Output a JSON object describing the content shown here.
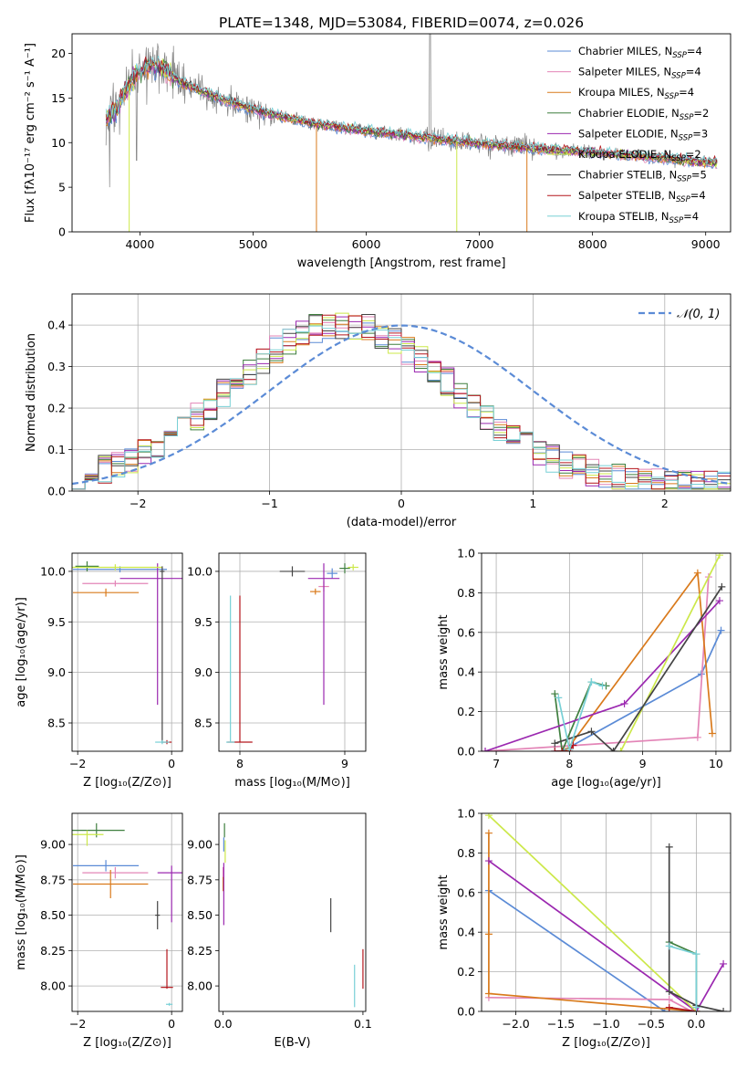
{
  "title": "PLATE=1348, MJD=53084, FIBERID=0074, z=0.026",
  "models": [
    {
      "name": "Chabrier MILES",
      "nssp": "4",
      "color": "#5b8bd6"
    },
    {
      "name": "Salpeter MILES",
      "nssp": "4",
      "color": "#e385b7"
    },
    {
      "name": "Kroupa MILES",
      "nssp": "4",
      "color": "#d97a1c"
    },
    {
      "name": "Chabrier ELODIE",
      "nssp": "2",
      "color": "#3f7f3f"
    },
    {
      "name": "Salpeter ELODIE",
      "nssp": "3",
      "color": "#9b28b0"
    },
    {
      "name": "Kroupa ELODIE",
      "nssp": "2",
      "color": "#cce84a"
    },
    {
      "name": "Chabrier STELIB",
      "nssp": "5",
      "color": "#444444"
    },
    {
      "name": "Salpeter STELIB",
      "nssp": "4",
      "color": "#b4161c"
    },
    {
      "name": "Kroupa STELIB",
      "nssp": "4",
      "color": "#78d0d6"
    }
  ],
  "chart_data": [
    {
      "id": "spectrum",
      "type": "line",
      "xlabel": "wavelength [Angstrom, rest frame]",
      "ylabel": "Flux [fλ10⁻¹⁷ erg cm⁻² s⁻¹ A⁻¹]",
      "xlim": [
        3400,
        9220
      ],
      "ylim": [
        0,
        22.2
      ],
      "xticks": [
        4000,
        5000,
        6000,
        7000,
        8000,
        9000
      ],
      "yticks": [
        0,
        5,
        10,
        15,
        20
      ],
      "grid": false,
      "legend": "top-right",
      "data_color": "#808080",
      "continuum": [
        [
          3700,
          12.8
        ],
        [
          3800,
          14.0
        ],
        [
          3900,
          16.5
        ],
        [
          4000,
          18.0
        ],
        [
          4100,
          18.8
        ],
        [
          4200,
          18.3
        ],
        [
          4300,
          17.2
        ],
        [
          4500,
          16.0
        ],
        [
          4700,
          15.0
        ],
        [
          5000,
          13.7
        ],
        [
          5500,
          12.2
        ],
        [
          6000,
          11.3
        ],
        [
          6500,
          10.6
        ],
        [
          7000,
          9.9
        ],
        [
          7500,
          9.3
        ],
        [
          8000,
          8.9
        ],
        [
          8500,
          8.4
        ],
        [
          9000,
          7.8
        ],
        [
          9100,
          7.7
        ]
      ]
    },
    {
      "id": "residuals",
      "type": "step",
      "xlabel": "(data-model)/error",
      "ylabel": "Normed distribution",
      "xlim": [
        -2.5,
        2.5
      ],
      "ylim": [
        0,
        0.475
      ],
      "xticks": [
        -2,
        -1,
        0,
        1,
        2
      ],
      "yticks": [
        0.0,
        0.1,
        0.2,
        0.3,
        0.4
      ],
      "grid": true,
      "legend": "top-right",
      "normal_label": "𝒩(0, 1)",
      "normal_color": "#5b8bd6",
      "bin_width": 0.1
    },
    {
      "id": "age-vs-Z",
      "type": "errorbar",
      "xlabel": "Z [log₁₀(Z/Z⊙)]",
      "ylabel": "age  [log₁₀(age/yr)]",
      "xlim": [
        -2.12,
        0.23
      ],
      "ylim": [
        8.22,
        10.18
      ],
      "xticks": [
        -2,
        0
      ],
      "yticks": [
        8.5,
        9.0,
        9.5,
        10.0
      ],
      "grid": true,
      "points": [
        {
          "x": -1.1,
          "xerr": [
            1.0,
            1.0
          ],
          "y": 10.02,
          "yerr": [
            0.03,
            0.03
          ]
        },
        {
          "x": -1.2,
          "xerr": [
            0.7,
            0.7
          ],
          "y": 9.88,
          "yerr": [
            0.03,
            0.03
          ]
        },
        {
          "x": -1.4,
          "xerr": [
            0.7,
            0.7
          ],
          "y": 9.79,
          "yerr": [
            0.04,
            0.04
          ]
        },
        {
          "x": -1.8,
          "xerr": [
            0.25,
            0.25
          ],
          "y": 10.05,
          "yerr": [
            0.05,
            0.05
          ]
        },
        {
          "x": -0.3,
          "xerr": [
            0.8,
            0.8
          ],
          "y": 9.93,
          "yerr": [
            1.25,
            0.15
          ]
        },
        {
          "x": -1.2,
          "xerr": [
            1.0,
            1.0
          ],
          "y": 10.04,
          "yerr": [
            0.03,
            0.03
          ]
        },
        {
          "x": -0.2,
          "xerr": [
            0.05,
            0.05
          ],
          "y": 10.0,
          "yerr": [
            1.7,
            0.05
          ]
        },
        {
          "x": -0.1,
          "xerr": [
            0.1,
            0.1
          ],
          "y": 8.31,
          "yerr": [
            0.02,
            0.02
          ]
        },
        {
          "x": -0.2,
          "xerr": [
            0.15,
            0.15
          ],
          "y": 8.31,
          "yerr": [
            0.02,
            0.02
          ]
        }
      ]
    },
    {
      "id": "age-vs-mass",
      "type": "errorbar",
      "xlabel": "mass [log₁₀(M/M⊙)]",
      "ylabel": "",
      "xlim": [
        7.8,
        9.2
      ],
      "ylim": [
        8.22,
        10.18
      ],
      "xticks": [
        8,
        9
      ],
      "yticks": [
        8.5,
        9.0,
        9.5,
        10.0
      ],
      "grid": true,
      "points": [
        {
          "x": 8.88,
          "xerr": [
            0.05,
            0.05
          ],
          "y": 9.98,
          "yerr": [
            0.05,
            0.05
          ]
        },
        {
          "x": 8.8,
          "xerr": [
            0.05,
            0.05
          ],
          "y": 9.85,
          "yerr": [
            0.05,
            0.05
          ]
        },
        {
          "x": 8.72,
          "xerr": [
            0.05,
            0.05
          ],
          "y": 9.8,
          "yerr": [
            0.03,
            0.03
          ]
        },
        {
          "x": 9.0,
          "xerr": [
            0.05,
            0.05
          ],
          "y": 10.03,
          "yerr": [
            0.05,
            0.05
          ]
        },
        {
          "x": 8.8,
          "xerr": [
            0.15,
            0.15
          ],
          "y": 9.93,
          "yerr": [
            1.25,
            0.15
          ]
        },
        {
          "x": 9.08,
          "xerr": [
            0.05,
            0.05
          ],
          "y": 10.04,
          "yerr": [
            0.03,
            0.03
          ]
        },
        {
          "x": 8.5,
          "xerr": [
            0.12,
            0.12
          ],
          "y": 10.0,
          "yerr": [
            0.05,
            0.05
          ]
        },
        {
          "x": 8.0,
          "xerr": [
            0.12,
            0.12
          ],
          "y": 8.31,
          "yerr": [
            0,
            1.45
          ]
        },
        {
          "x": 7.91,
          "xerr": [
            0.04,
            0.04
          ],
          "y": 8.31,
          "yerr": [
            0,
            1.45
          ]
        }
      ]
    },
    {
      "id": "weight-vs-age",
      "type": "line",
      "xlabel": "age  [log₁₀(age/yr)]",
      "ylabel": "mass weight",
      "xlim": [
        6.8,
        10.2
      ],
      "ylim": [
        0,
        1.0
      ],
      "xticks": [
        7,
        8,
        9,
        10
      ],
      "yticks": [
        0.0,
        0.2,
        0.4,
        0.6,
        0.8,
        1.0
      ],
      "grid": true,
      "series": [
        {
          "x": [
            7.8,
            7.9,
            9.8,
            10.07
          ],
          "y": [
            0.0,
            0.0,
            0.39,
            0.61
          ]
        },
        {
          "x": [
            6.85,
            9.75,
            9.9
          ],
          "y": [
            0.0,
            0.07,
            0.88
          ]
        },
        {
          "x": [
            7.95,
            9.75,
            9.95
          ],
          "y": [
            0.0,
            0.9,
            0.09
          ]
        },
        {
          "x": [
            7.8,
            7.9,
            8.3,
            8.5
          ],
          "y": [
            0.29,
            0.0,
            0.35,
            0.33
          ]
        },
        {
          "x": [
            6.85,
            8.75,
            10.05
          ],
          "y": [
            0.0,
            0.24,
            0.76
          ]
        },
        {
          "x": [
            8.7,
            10.05
          ],
          "y": [
            0.0,
            0.99
          ]
        },
        {
          "x": [
            7.8,
            8.3,
            8.6,
            10.08
          ],
          "y": [
            0.04,
            0.1,
            0.0,
            0.83
          ]
        },
        {
          "x": [
            7.8,
            7.9,
            8.0,
            8.05
          ],
          "y": [
            0.0,
            0.0,
            0.0,
            0.03
          ]
        },
        {
          "x": [
            7.85,
            8.0,
            8.3,
            8.45
          ],
          "y": [
            0.27,
            0.01,
            0.35,
            0.33
          ]
        }
      ]
    },
    {
      "id": "mass-vs-Z",
      "type": "errorbar",
      "xlabel": "Z [log₁₀(Z/Z⊙)]",
      "ylabel": "mass [log₁₀(M/M⊙)]",
      "xlim": [
        -2.12,
        0.23
      ],
      "ylim": [
        7.82,
        9.22
      ],
      "xticks": [
        -2,
        0
      ],
      "yticks": [
        8.0,
        8.25,
        8.5,
        8.75,
        9.0
      ],
      "grid": true,
      "points": [
        {
          "x": -1.4,
          "xerr": [
            0.7,
            0.7
          ],
          "y": 8.85,
          "yerr": [
            0.04,
            0.04
          ]
        },
        {
          "x": -1.2,
          "xerr": [
            0.7,
            0.7
          ],
          "y": 8.8,
          "yerr": [
            0.04,
            0.04
          ]
        },
        {
          "x": -1.3,
          "xerr": [
            0.8,
            0.8
          ],
          "y": 8.72,
          "yerr": [
            0.1,
            0.1
          ]
        },
        {
          "x": -1.6,
          "xerr": [
            0.6,
            0.6
          ],
          "y": 9.1,
          "yerr": [
            0.05,
            0.05
          ]
        },
        {
          "x": 0.0,
          "xerr": [
            0.3,
            0.3
          ],
          "y": 8.8,
          "yerr": [
            0.35,
            0.05
          ]
        },
        {
          "x": -1.8,
          "xerr": [
            0.35,
            0.35
          ],
          "y": 9.07,
          "yerr": [
            0.08,
            0.03
          ]
        },
        {
          "x": -0.3,
          "xerr": [
            0.05,
            0.05
          ],
          "y": 8.5,
          "yerr": [
            0.1,
            0.1
          ]
        },
        {
          "x": -0.1,
          "xerr": [
            0.13,
            0.13
          ],
          "y": 7.99,
          "yerr": [
            0.01,
            0.27
          ]
        },
        {
          "x": -0.05,
          "xerr": [
            0.07,
            0.07
          ],
          "y": 7.87,
          "yerr": [
            0.01,
            0.01
          ]
        }
      ]
    },
    {
      "id": "mass-vs-ebv",
      "type": "errorbar",
      "xlabel": "E(B-V)",
      "ylabel": "",
      "xlim": [
        -0.003,
        0.102
      ],
      "ylim": [
        7.82,
        9.22
      ],
      "xticks": [
        0.0,
        0.1
      ],
      "yticks": [
        8.0,
        8.25,
        8.5,
        8.75,
        9.0
      ],
      "grid": false,
      "points": [
        {
          "x": 0.0005,
          "xerr": [
            0,
            0
          ],
          "y": 9.0,
          "yerr": [
            0.05,
            0.05
          ]
        },
        {
          "x": 0.0,
          "xerr": [
            0,
            0
          ],
          "y": 8.8,
          "yerr": [
            0.04,
            0.04
          ]
        },
        {
          "x": 0.0,
          "xerr": [
            0,
            0
          ],
          "y": 8.72,
          "yerr": [
            0.05,
            0.05
          ]
        },
        {
          "x": 0.001,
          "xerr": [
            0,
            0
          ],
          "y": 9.1,
          "yerr": [
            0.05,
            0.05
          ]
        },
        {
          "x": 0.0005,
          "xerr": [
            0,
            0
          ],
          "y": 8.65,
          "yerr": [
            0.22,
            0.22
          ]
        },
        {
          "x": 0.0015,
          "xerr": [
            0,
            0
          ],
          "y": 8.95,
          "yerr": [
            0.08,
            0.08
          ]
        },
        {
          "x": 0.077,
          "xerr": [
            0,
            0
          ],
          "y": 8.5,
          "yerr": [
            0.12,
            0.12
          ]
        },
        {
          "x": 0.1,
          "xerr": [
            0,
            0
          ],
          "y": 8.12,
          "yerr": [
            0.14,
            0.14
          ]
        },
        {
          "x": 0.094,
          "xerr": [
            0,
            0
          ],
          "y": 8.0,
          "yerr": [
            0.15,
            0.15
          ]
        }
      ]
    },
    {
      "id": "weight-vs-Z",
      "type": "line",
      "xlabel": "Z [log₁₀(Z/Z⊙)]",
      "ylabel": "mass weight",
      "xlim": [
        -2.38,
        0.38
      ],
      "ylim": [
        0,
        1.0
      ],
      "xticks": [
        -2.0,
        -1.5,
        -1.0,
        -0.5,
        0.0
      ],
      "yticks": [
        0.0,
        0.2,
        0.4,
        0.6,
        0.8,
        1.0
      ],
      "grid": true,
      "series": [
        {
          "x": [
            -2.3,
            -0.35
          ],
          "y": [
            0.61,
            0.0
          ]
        },
        {
          "x": [
            -2.3,
            -0.3,
            -0.05,
            0.0
          ],
          "y": [
            0.07,
            0.06,
            0.0,
            0.0
          ]
        },
        {
          "x": [
            -2.3,
            -2.3,
            -2.3,
            0.0
          ],
          "y": [
            0.9,
            0.39,
            0.09,
            0.0
          ]
        },
        {
          "x": [
            -0.3,
            0.0,
            0.0
          ],
          "y": [
            0.35,
            0.29,
            0.0
          ]
        },
        {
          "x": [
            -2.3,
            0.0,
            0.3
          ],
          "y": [
            0.76,
            0.0,
            0.24
          ]
        },
        {
          "x": [
            -2.3,
            0.0
          ],
          "y": [
            0.99,
            0.0
          ]
        },
        {
          "x": [
            -0.3,
            -0.3,
            0.0,
            0.3
          ],
          "y": [
            0.83,
            0.1,
            0.03,
            0.0
          ]
        },
        {
          "x": [
            -0.3,
            0.0
          ],
          "y": [
            0.02,
            0.0
          ]
        },
        {
          "x": [
            -0.3,
            0.0,
            0.0
          ],
          "y": [
            0.33,
            0.29,
            0.02
          ]
        }
      ]
    }
  ]
}
